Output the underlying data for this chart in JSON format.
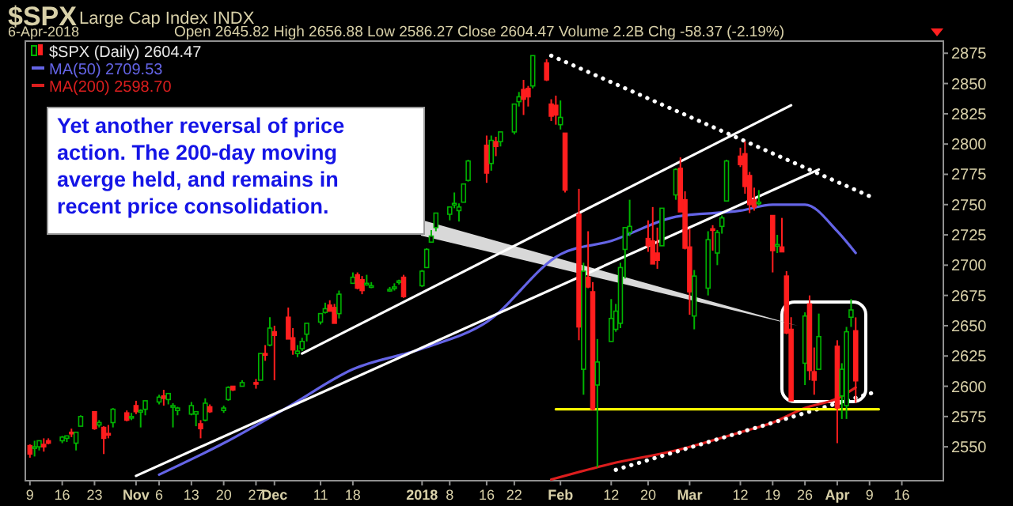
{
  "chart_data": {
    "type": "candlestick",
    "title": "$SPX",
    "subtitle": "Large Cap Index  INDX",
    "annotations": [
      "6-Apr-2018",
      "Open 2645.82  High 2656.88  Low 2586.27  Close 2604.47  Volume 2.2B  Chg -58.37 (-2.19%)",
      "Yet another reversal of price action. The 200-day moving averge held, and remains in recent price consolidation."
    ],
    "legend": "top left",
    "xlim": [
      "2017-10-08",
      "2018-04-25"
    ],
    "xticks": [
      {
        "value": "2017-10-09",
        "label": "9"
      },
      {
        "value": "2017-10-16",
        "label": "16"
      },
      {
        "value": "2017-10-23",
        "label": "23"
      },
      {
        "value": "2017-11-01",
        "label": "Nov"
      },
      {
        "value": "2017-11-06",
        "label": "6"
      },
      {
        "value": "2017-11-13",
        "label": "13"
      },
      {
        "value": "2017-11-20",
        "label": "20"
      },
      {
        "value": "2017-11-27",
        "label": "27"
      },
      {
        "value": "2017-12-01",
        "label": "Dec"
      },
      {
        "value": "2017-12-11",
        "label": "11"
      },
      {
        "value": "2017-12-18",
        "label": "18"
      },
      {
        "value": "2018-01-02",
        "label": "2018"
      },
      {
        "value": "2018-01-08",
        "label": "8"
      },
      {
        "value": "2018-01-16",
        "label": "16"
      },
      {
        "value": "2018-01-22",
        "label": "22"
      },
      {
        "value": "2018-02-01",
        "label": "Feb"
      },
      {
        "value": "2018-02-12",
        "label": "12"
      },
      {
        "value": "2018-02-20",
        "label": "20"
      },
      {
        "value": "2018-03-01",
        "label": "Mar"
      },
      {
        "value": "2018-03-12",
        "label": "12"
      },
      {
        "value": "2018-03-19",
        "label": "19"
      },
      {
        "value": "2018-03-26",
        "label": "26"
      },
      {
        "value": "2018-04-02",
        "label": "Apr"
      },
      {
        "value": "2018-04-09",
        "label": "9"
      },
      {
        "value": "2018-04-16",
        "label": "16"
      }
    ],
    "ylim": [
      2522,
      2885
    ],
    "yticks": [
      2550,
      2575,
      2600,
      2625,
      2650,
      2675,
      2700,
      2725,
      2750,
      2775,
      2800,
      2825,
      2850,
      2875
    ],
    "series": [
      {
        "name": "$SPX (Daily) 2604.47",
        "color": "#00b400",
        "colors": [
          "#ff1e1e",
          "#00b400",
          "#00b400",
          "#ff1e1e",
          "#ff1e1e",
          "#00b400",
          "#00b400",
          "#ff1e1e",
          "#00b400",
          "#00b400",
          "#ff1e1e",
          "#00b400",
          "#ff1e1e",
          "#ff1e1e",
          "#00b400",
          "#ff1e1e",
          "#00b400",
          "#ff1e1e",
          "#00b400",
          "#00b400",
          "#00b400",
          "#ff1e1e",
          "#00b400",
          "#00b400",
          "#00b400",
          "#00b400",
          "#00b400",
          "#ff1e1e",
          "#00b400",
          "#ff1e1e",
          "#00b400",
          "#00b400",
          "#ff1e1e",
          "#00b400",
          "#ff1e1e",
          "#00b400",
          "#ff1e1e",
          "#00b400",
          "#ff1e1e",
          "#ff1e1e",
          "#ff1e1e",
          "#00b400",
          "#00b400",
          "#00b400",
          "#00b400",
          "#00b400",
          "#ff1e1e",
          "#ff1e1e",
          "#00b400",
          "#00b400",
          "#ff1e1e",
          "#ff1e1e",
          "#00b400",
          "#00b400",
          "#00b400",
          "#00b400",
          "#00b400",
          "#ff1e1e",
          "#00b400",
          "#00b400",
          "#00b400",
          "#00b400",
          "#00b400",
          "#00b400",
          "#00b400",
          "#00b400",
          "#00b400",
          "#ff1e1e",
          "#00b400",
          "#ff1e1e",
          "#00b400",
          "#00b400",
          "#00b400",
          "#ff1e1e",
          "#ff1e1e",
          "#00b400",
          "#ff1e1e",
          "#ff1e1e",
          "#ff1e1e",
          "#00b400",
          "#ff1e1e",
          "#ff1e1e",
          "#00b400",
          "#ff1e1e",
          "#ff1e1e",
          "#00b400",
          "#00b400",
          "#00b400",
          "#00b400",
          "#00b400",
          "#00b400",
          "#ff1e1e",
          "#ff1e1e",
          "#ff1e1e",
          "#00b400",
          "#00b400",
          "#ff1e1e",
          "#ff1e1e",
          "#ff1e1e",
          "#00b400",
          "#00b400",
          "#ff1e1e",
          "#00b400",
          "#00b400",
          "#00b400",
          "#ff1e1e",
          "#ff1e1e",
          "#ff1e1e",
          "#ff1e1e",
          "#00b400",
          "#ff1e1e",
          "#00b400",
          "#ff1e1e",
          "#ff1e1e",
          "#ff1e1e",
          "#00b400",
          "#ff1e1e",
          "#ff1e1e",
          "#00b400",
          "#ff1e1e",
          "#00b400",
          "#00b400",
          "#00b400",
          "#ff1e1e"
        ],
        "x": [
          "2017-10-09",
          "2017-10-10",
          "2017-10-11",
          "2017-10-12",
          "2017-10-13",
          "2017-10-16",
          "2017-10-17",
          "2017-10-18",
          "2017-10-19",
          "2017-10-20",
          "2017-10-23",
          "2017-10-24",
          "2017-10-25",
          "2017-10-26",
          "2017-10-27",
          "2017-10-30",
          "2017-10-31",
          "2017-11-01",
          "2017-11-02",
          "2017-11-03",
          "2017-11-06",
          "2017-11-07",
          "2017-11-08",
          "2017-11-09",
          "2017-11-10",
          "2017-11-13",
          "2017-11-14",
          "2017-11-15",
          "2017-11-16",
          "2017-11-17",
          "2017-11-20",
          "2017-11-21",
          "2017-11-22",
          "2017-11-24",
          "2017-11-27",
          "2017-11-28",
          "2017-11-29",
          "2017-11-30",
          "2017-12-01",
          "2017-12-04",
          "2017-12-05",
          "2017-12-06",
          "2017-12-07",
          "2017-12-08",
          "2017-12-11",
          "2017-12-12",
          "2017-12-13",
          "2017-12-14",
          "2017-12-15",
          "2017-12-18",
          "2017-12-19",
          "2017-12-20",
          "2017-12-21",
          "2017-12-22",
          "2017-12-26",
          "2017-12-27",
          "2017-12-28",
          "2017-12-29",
          "2018-01-02",
          "2018-01-03",
          "2018-01-04",
          "2018-01-05",
          "2018-01-08",
          "2018-01-09",
          "2018-01-10",
          "2018-01-11",
          "2018-01-12",
          "2018-01-16",
          "2018-01-17",
          "2018-01-18",
          "2018-01-19",
          "2018-01-22",
          "2018-01-23",
          "2018-01-24",
          "2018-01-25",
          "2018-01-26",
          "2018-01-29",
          "2018-01-30",
          "2018-01-31",
          "2018-02-01",
          "2018-02-02",
          "2018-02-05",
          "2018-02-06",
          "2018-02-07",
          "2018-02-08",
          "2018-02-09",
          "2018-02-12",
          "2018-02-13",
          "2018-02-14",
          "2018-02-15",
          "2018-02-16",
          "2018-02-20",
          "2018-02-21",
          "2018-02-22",
          "2018-02-23",
          "2018-02-26",
          "2018-02-27",
          "2018-02-28",
          "2018-03-01",
          "2018-03-02",
          "2018-03-05",
          "2018-03-06",
          "2018-03-07",
          "2018-03-08",
          "2018-03-09",
          "2018-03-12",
          "2018-03-13",
          "2018-03-14",
          "2018-03-15",
          "2018-03-16",
          "2018-03-19",
          "2018-03-20",
          "2018-03-21",
          "2018-03-22",
          "2018-03-23",
          "2018-03-26",
          "2018-03-27",
          "2018-03-28",
          "2018-03-29",
          "2018-04-02",
          "2018-04-03",
          "2018-04-04",
          "2018-04-05",
          "2018-04-06"
        ],
        "ohlc": [
          [
            2551,
            2552,
            2541,
            2544
          ],
          [
            2549,
            2555,
            2542,
            2550
          ],
          [
            2550,
            2555,
            2547,
            2555
          ],
          [
            2552,
            2557,
            2546,
            2550
          ],
          [
            2555,
            2557,
            2552,
            2553
          ],
          [
            2555,
            2559,
            2553,
            2558
          ],
          [
            2557,
            2559,
            2554,
            2559
          ],
          [
            2562,
            2565,
            2558,
            2561
          ],
          [
            2553,
            2562,
            2547,
            2562
          ],
          [
            2567,
            2576,
            2567,
            2575
          ],
          [
            2579,
            2579,
            2564,
            2565
          ],
          [
            2568,
            2572,
            2566,
            2570
          ],
          [
            2566,
            2567,
            2544,
            2557
          ],
          [
            2561,
            2568,
            2557,
            2560
          ],
          [
            2570,
            2582,
            2566,
            2581
          ],
          [
            2578,
            2580,
            2571,
            2572
          ],
          [
            2575,
            2578,
            2572,
            2575
          ],
          [
            2584,
            2588,
            2577,
            2579
          ],
          [
            2579,
            2581,
            2566,
            2580
          ],
          [
            2581,
            2588,
            2576,
            2588
          ],
          [
            2587,
            2593,
            2585,
            2591
          ],
          [
            2592,
            2597,
            2584,
            2590
          ],
          [
            2589,
            2594,
            2585,
            2594
          ],
          [
            2584,
            2586,
            2566,
            2584
          ],
          [
            2580,
            2583,
            2576,
            2582
          ],
          [
            2577,
            2587,
            2576,
            2584
          ],
          [
            2577,
            2579,
            2567,
            2579
          ],
          [
            2569,
            2572,
            2557,
            2565
          ],
          [
            2572,
            2590,
            2571,
            2586
          ],
          [
            2583,
            2585,
            2578,
            2579
          ],
          [
            2580,
            2584,
            2578,
            2582
          ],
          [
            2589,
            2600,
            2588,
            2599
          ],
          [
            2600,
            2600,
            2596,
            2597
          ],
          [
            2600,
            2605,
            2600,
            2603
          ],
          [
            2603,
            2606,
            2598,
            2602
          ],
          [
            2605,
            2627,
            2605,
            2627
          ],
          [
            2627,
            2634,
            2621,
            2626
          ],
          [
            2634,
            2657,
            2633,
            2648
          ],
          [
            2645,
            2650,
            2605,
            2642
          ],
          [
            2657,
            2665,
            2639,
            2639
          ],
          [
            2640,
            2648,
            2626,
            2630
          ],
          [
            2627,
            2634,
            2624,
            2629
          ],
          [
            2631,
            2640,
            2629,
            2637
          ],
          [
            2643,
            2652,
            2637,
            2652
          ],
          [
            2653,
            2660,
            2651,
            2660
          ],
          [
            2661,
            2669,
            2660,
            2664
          ],
          [
            2667,
            2671,
            2662,
            2662
          ],
          [
            2665,
            2668,
            2652,
            2652
          ],
          [
            2660,
            2679,
            2656,
            2676
          ],
          [
            2685,
            2694,
            2685,
            2690
          ],
          [
            2692,
            2694,
            2680,
            2681
          ],
          [
            2688,
            2691,
            2676,
            2679
          ],
          [
            2684,
            2692,
            2683,
            2685
          ],
          [
            2683,
            2686,
            2681,
            2683
          ],
          [
            2679,
            2682,
            2678,
            2680
          ],
          [
            2682,
            2685,
            2679,
            2682
          ],
          [
            2686,
            2688,
            2684,
            2687
          ],
          [
            2690,
            2692,
            2673,
            2674
          ],
          [
            2683,
            2696,
            2682,
            2695
          ],
          [
            2698,
            2714,
            2698,
            2713
          ],
          [
            2719,
            2729,
            2719,
            2724
          ],
          [
            2731,
            2743,
            2728,
            2743
          ],
          [
            2742,
            2748,
            2737,
            2748
          ],
          [
            2751,
            2760,
            2747,
            2751
          ],
          [
            2745,
            2751,
            2736,
            2748
          ],
          [
            2752,
            2767,
            2752,
            2767
          ],
          [
            2770,
            2787,
            2769,
            2786
          ],
          [
            2799,
            2807,
            2768,
            2776
          ],
          [
            2784,
            2807,
            2778,
            2803
          ],
          [
            2802,
            2806,
            2790,
            2798
          ],
          [
            2802,
            2810,
            2798,
            2810
          ],
          [
            2810,
            2833,
            2808,
            2833
          ],
          [
            2835,
            2843,
            2831,
            2839
          ],
          [
            2845,
            2853,
            2824,
            2837
          ],
          [
            2846,
            2848,
            2831,
            2839
          ],
          [
            2848,
            2873,
            2846,
            2873
          ],
          [
            2867,
            2870,
            2852,
            2853
          ],
          [
            2833,
            2837,
            2819,
            2823
          ],
          [
            2832,
            2840,
            2816,
            2824
          ],
          [
            2816,
            2836,
            2812,
            2822
          ],
          [
            2809,
            2809,
            2760,
            2762
          ],
          [
            2742,
            2763,
            2638,
            2649
          ],
          [
            2614,
            2702,
            2593,
            2695
          ],
          [
            2690,
            2728,
            2681,
            2682
          ],
          [
            2678,
            2686,
            2580,
            2581
          ],
          [
            2601,
            2639,
            2533,
            2620
          ],
          [
            2637,
            2672,
            2637,
            2656
          ],
          [
            2647,
            2668,
            2645,
            2662
          ],
          [
            2652,
            2702,
            2648,
            2698
          ],
          [
            2713,
            2731,
            2689,
            2731
          ],
          [
            2727,
            2754,
            2724,
            2732
          ],
          [
            2722,
            2737,
            2711,
            2716
          ],
          [
            2720,
            2748,
            2701,
            2701
          ],
          [
            2710,
            2731,
            2697,
            2704
          ],
          [
            2716,
            2747,
            2716,
            2747
          ],
          [
            2758,
            2780,
            2754,
            2779
          ],
          [
            2780,
            2789,
            2744,
            2744
          ],
          [
            2754,
            2761,
            2713,
            2714
          ],
          [
            2715,
            2730,
            2659,
            2678
          ],
          [
            2658,
            2696,
            2647,
            2691
          ],
          [
            2681,
            2728,
            2675,
            2721
          ],
          [
            2730,
            2733,
            2712,
            2729
          ],
          [
            2710,
            2729,
            2700,
            2727
          ],
          [
            2732,
            2741,
            2726,
            2739
          ],
          [
            2753,
            2787,
            2753,
            2786
          ],
          [
            2790,
            2797,
            2781,
            2783
          ],
          [
            2792,
            2802,
            2759,
            2765
          ],
          [
            2774,
            2777,
            2743,
            2750
          ],
          [
            2754,
            2764,
            2745,
            2748
          ],
          [
            2751,
            2762,
            2749,
            2752
          ],
          [
            2741,
            2741,
            2694,
            2712
          ],
          [
            2716,
            2725,
            2710,
            2717
          ],
          [
            2715,
            2739,
            2711,
            2711
          ],
          [
            2691,
            2695,
            2643,
            2644
          ],
          [
            2647,
            2657,
            2588,
            2588
          ],
          [
            2619,
            2661,
            2601,
            2658
          ],
          [
            2668,
            2675,
            2605,
            2613
          ],
          [
            2612,
            2632,
            2593,
            2605
          ],
          [
            2614,
            2660,
            2614,
            2641
          ],
          [
            2633,
            2638,
            2553,
            2582
          ],
          [
            2592,
            2619,
            2573,
            2614
          ],
          [
            2584,
            2649,
            2573,
            2645
          ],
          [
            2657,
            2672,
            2649,
            2663
          ],
          [
            2645.82,
            2656.88,
            2586.27,
            2604.47
          ]
        ]
      },
      {
        "type": "line",
        "name": "MA(50) 2709.53",
        "color": "#6464e6",
        "x": [
          "2017-11-06",
          "2017-11-20",
          "2017-12-04",
          "2017-12-18",
          "2018-01-02",
          "2018-01-16",
          "2018-02-01",
          "2018-02-12",
          "2018-02-26",
          "2018-03-12",
          "2018-03-19",
          "2018-03-26",
          "2018-04-02",
          "2018-04-06"
        ],
        "values": [
          2527,
          2553,
          2583,
          2614,
          2631,
          2653,
          2709,
          2720,
          2740,
          2745,
          2750,
          2750,
          2728,
          2710
        ]
      },
      {
        "type": "line",
        "name": "MA(200) 2598.70",
        "color": "#dc1e1e",
        "x": [
          "2018-01-30",
          "2018-02-12",
          "2018-02-26",
          "2018-03-12",
          "2018-03-19",
          "2018-03-26",
          "2018-04-02",
          "2018-04-06"
        ],
        "values": [
          2523,
          2536,
          2547,
          2562,
          2570,
          2582,
          2590,
          2599
        ]
      },
      {
        "type": "line",
        "color": "#ffffff",
        "line_style": "solid",
        "x": [
          "2017-12-07",
          "2018-03-23"
        ],
        "values": [
          2627,
          2832
        ]
      },
      {
        "type": "line",
        "color": "#ffffff",
        "line_style": "solid",
        "x": [
          "2017-11-01",
          "2018-03-29"
        ],
        "values": [
          2526,
          2779
        ]
      },
      {
        "type": "line",
        "color": "#ffffff",
        "line_style": "dotted",
        "x": [
          "2018-01-30",
          "2018-04-09"
        ],
        "values": [
          2873,
          2757
        ]
      },
      {
        "type": "line",
        "color": "#ffffff",
        "line_style": "dotted",
        "x": [
          "2018-02-13",
          "2018-04-10"
        ],
        "values": [
          2531,
          2595
        ]
      },
      {
        "type": "line",
        "color": "#ffff00",
        "line_style": "solid",
        "x": [
          "2018-01-31",
          "2018-04-11"
        ],
        "values": [
          2581,
          2581
        ]
      }
    ]
  }
}
